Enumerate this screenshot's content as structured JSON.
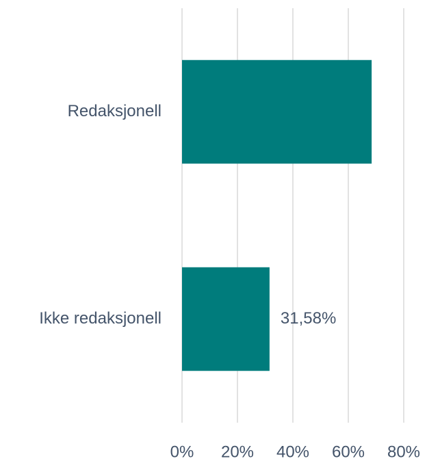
{
  "chart_data": {
    "type": "hbar",
    "categories": [
      "Redaksjonell",
      "Ikke redaksjonell"
    ],
    "values": [
      68.42,
      31.58
    ],
    "value_labels": [
      null,
      "31,58%"
    ],
    "color": "#007c7c",
    "xlim": [
      0,
      80
    ],
    "xticks": [
      {
        "value": 0,
        "label": "0%"
      },
      {
        "value": 20,
        "label": "20%"
      },
      {
        "value": 40,
        "label": "40%"
      },
      {
        "value": 60,
        "label": "60%"
      },
      {
        "value": 80,
        "label": "80%"
      }
    ],
    "grid": true
  }
}
